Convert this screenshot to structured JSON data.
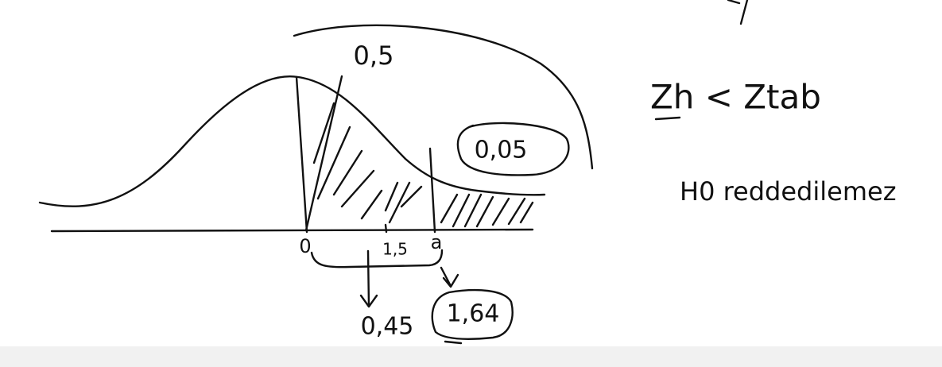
{
  "labels": {
    "top_area": "0,5",
    "tail_area": "0,05",
    "origin": "0",
    "mid_value": "1,5",
    "critical_point": "a",
    "middle_area": "0,45",
    "critical_value": "1,64",
    "comparison": "Zh < Ztab",
    "conclusion": "H0 reddedilemez"
  }
}
